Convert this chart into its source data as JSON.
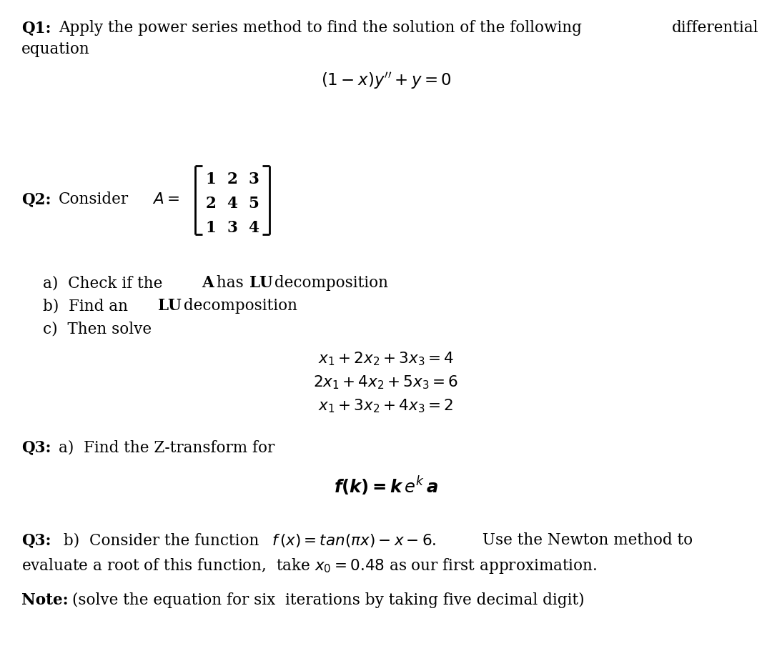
{
  "background_color": "#ffffff",
  "text_color": "#000000",
  "fig_width": 10.8,
  "fig_height": 9.32,
  "dpi": 100,
  "matrix_rows": [
    [
      "1",
      "2",
      "3"
    ],
    [
      "2",
      "4",
      "5"
    ],
    [
      "1",
      "3",
      "4"
    ]
  ]
}
